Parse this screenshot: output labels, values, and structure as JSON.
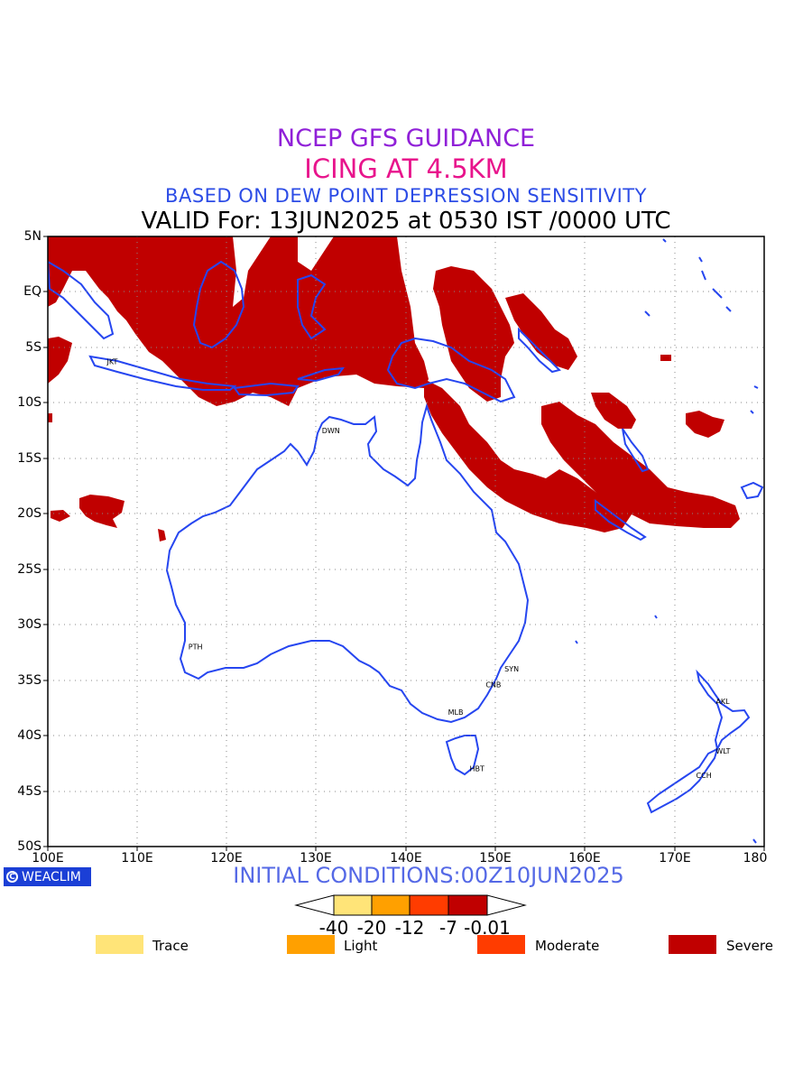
{
  "titles": {
    "line1": "NCEP GFS GUIDANCE",
    "line2": "ICING AT 4.5KM",
    "line3": "BASED ON DEW POINT DEPRESSION SENSITIVITY",
    "line4": "VALID For: 13JUN2025 at 0530 IST /0000 UTC"
  },
  "colors": {
    "title1": "#9020d8",
    "title2": "#e8148c",
    "title3": "#2c4ce6",
    "coast": "#2646f0",
    "severe": "#c00000",
    "moderate": "#ff3c00",
    "light": "#ffa000",
    "trace": "#ffe478"
  },
  "map": {
    "lat_labels": [
      "5N",
      "EQ",
      "5S",
      "10S",
      "15S",
      "20S",
      "25S",
      "30S",
      "35S",
      "40S",
      "45S",
      "50S"
    ],
    "lon_labels": [
      "100E",
      "110E",
      "120E",
      "130E",
      "140E",
      "150E",
      "160E",
      "170E",
      "180"
    ],
    "extent": {
      "lon": [
        100,
        180
      ],
      "lat": [
        -50,
        5
      ]
    },
    "cities": [
      {
        "code": "JKT",
        "lon": 106.8,
        "lat": -6.2
      },
      {
        "code": "DWN",
        "lon": 130.8,
        "lat": -12.4
      },
      {
        "code": "PTH",
        "lon": 115.9,
        "lat": -31.9
      },
      {
        "code": "SYN",
        "lon": 151.2,
        "lat": -33.9
      },
      {
        "code": "CNB",
        "lon": 149.1,
        "lat": -35.3
      },
      {
        "code": "MLB",
        "lon": 144.9,
        "lat": -37.8
      },
      {
        "code": "HBT",
        "lon": 147.3,
        "lat": -42.9
      },
      {
        "code": "AKL",
        "lon": 174.8,
        "lat": -36.8
      },
      {
        "code": "WLT",
        "lon": 174.8,
        "lat": -41.3
      },
      {
        "code": "CCH",
        "lon": 172.6,
        "lat": -43.5
      }
    ]
  },
  "brand": {
    "label": "WEACLIM",
    "icon": "copyright-icon"
  },
  "initial_conditions": "INITIAL CONDITIONS:00Z10JUN2025",
  "colorbar": {
    "ticks": [
      "-40",
      "-20",
      "-12",
      "-7",
      "-0.01"
    ]
  },
  "legend": [
    {
      "label": "Trace",
      "color": "#ffe478"
    },
    {
      "label": "Light",
      "color": "#ffa000"
    },
    {
      "label": "Moderate",
      "color": "#ff3c00"
    },
    {
      "label": "Severe",
      "color": "#c00000"
    }
  ]
}
